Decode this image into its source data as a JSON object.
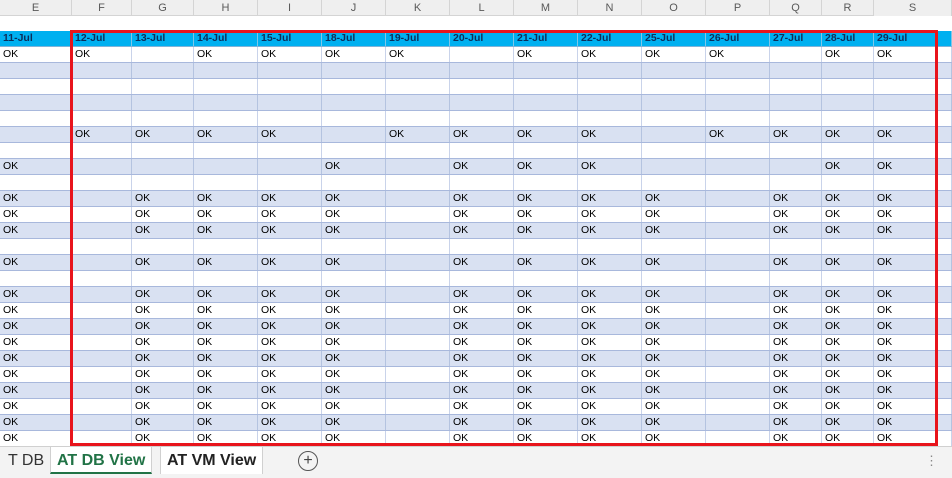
{
  "columns": [
    {
      "letter": "E",
      "width": 72
    },
    {
      "letter": "F",
      "width": 60
    },
    {
      "letter": "G",
      "width": 62
    },
    {
      "letter": "H",
      "width": 64
    },
    {
      "letter": "I",
      "width": 64
    },
    {
      "letter": "J",
      "width": 64
    },
    {
      "letter": "K",
      "width": 64
    },
    {
      "letter": "L",
      "width": 64
    },
    {
      "letter": "M",
      "width": 64
    },
    {
      "letter": "N",
      "width": 64
    },
    {
      "letter": "O",
      "width": 64
    },
    {
      "letter": "P",
      "width": 64
    },
    {
      "letter": "Q",
      "width": 52
    },
    {
      "letter": "R",
      "width": 52
    }
  ],
  "trailing_column": {
    "letter": "S"
  },
  "date_headers": [
    "11-Jul",
    "12-Jul",
    "13-Jul",
    "14-Jul",
    "15-Jul",
    "18-Jul",
    "19-Jul",
    "20-Jul",
    "21-Jul",
    "22-Jul",
    "25-Jul",
    "26-Jul",
    "27-Jul",
    "28-Jul",
    "29-Jul"
  ],
  "rows": [
    [
      "OK",
      "OK",
      "",
      "OK",
      "OK",
      "OK",
      "OK",
      "",
      "OK",
      "OK",
      "OK",
      "OK",
      "",
      "OK",
      "OK"
    ],
    [
      "",
      "",
      "",
      "",
      "",
      "",
      "",
      "",
      "",
      "",
      "",
      "",
      "",
      "",
      ""
    ],
    [
      "",
      "",
      "",
      "",
      "",
      "",
      "",
      "",
      "",
      "",
      "",
      "",
      "",
      "",
      ""
    ],
    [
      "",
      "",
      "",
      "",
      "",
      "",
      "",
      "",
      "",
      "",
      "",
      "",
      "",
      "",
      ""
    ],
    [
      "",
      "",
      "",
      "",
      "",
      "",
      "",
      "",
      "",
      "",
      "",
      "",
      "",
      "",
      ""
    ],
    [
      "",
      "OK",
      "OK",
      "OK",
      "OK",
      "",
      "OK",
      "OK",
      "OK",
      "OK",
      "",
      "OK",
      "OK",
      "OK",
      "OK"
    ],
    [
      "",
      "",
      "",
      "",
      "",
      "",
      "",
      "",
      "",
      "",
      "",
      "",
      "",
      "",
      ""
    ],
    [
      "OK",
      "",
      "",
      "",
      "",
      "OK",
      "",
      "OK",
      "OK",
      "OK",
      "",
      "",
      "",
      "OK",
      "OK"
    ],
    [
      "",
      "",
      "",
      "",
      "",
      "",
      "",
      "",
      "",
      "",
      "",
      "",
      "",
      "",
      ""
    ],
    [
      "OK",
      "",
      "OK",
      "OK",
      "OK",
      "OK",
      "",
      "OK",
      "OK",
      "OK",
      "OK",
      "",
      "OK",
      "OK",
      "OK"
    ],
    [
      "OK",
      "",
      "OK",
      "OK",
      "OK",
      "OK",
      "",
      "OK",
      "OK",
      "OK",
      "OK",
      "",
      "OK",
      "OK",
      "OK"
    ],
    [
      "OK",
      "",
      "OK",
      "OK",
      "OK",
      "OK",
      "",
      "OK",
      "OK",
      "OK",
      "OK",
      "",
      "OK",
      "OK",
      "OK"
    ],
    [
      "",
      "",
      "",
      "",
      "",
      "",
      "",
      "",
      "",
      "",
      "",
      "",
      "",
      "",
      ""
    ],
    [
      "OK",
      "",
      "OK",
      "OK",
      "OK",
      "OK",
      "",
      "OK",
      "OK",
      "OK",
      "OK",
      "",
      "OK",
      "OK",
      "OK"
    ],
    [
      "",
      "",
      "",
      "",
      "",
      "",
      "",
      "",
      "",
      "",
      "",
      "",
      "",
      "",
      ""
    ],
    [
      "OK",
      "",
      "OK",
      "OK",
      "OK",
      "OK",
      "",
      "OK",
      "OK",
      "OK",
      "OK",
      "",
      "OK",
      "OK",
      "OK"
    ],
    [
      "OK",
      "",
      "OK",
      "OK",
      "OK",
      "OK",
      "",
      "OK",
      "OK",
      "OK",
      "OK",
      "",
      "OK",
      "OK",
      "OK"
    ],
    [
      "OK",
      "",
      "OK",
      "OK",
      "OK",
      "OK",
      "",
      "OK",
      "OK",
      "OK",
      "OK",
      "",
      "OK",
      "OK",
      "OK"
    ],
    [
      "OK",
      "",
      "OK",
      "OK",
      "OK",
      "OK",
      "",
      "OK",
      "OK",
      "OK",
      "OK",
      "",
      "OK",
      "OK",
      "OK"
    ],
    [
      "OK",
      "",
      "OK",
      "OK",
      "OK",
      "OK",
      "",
      "OK",
      "OK",
      "OK",
      "OK",
      "",
      "OK",
      "OK",
      "OK"
    ],
    [
      "OK",
      "",
      "OK",
      "OK",
      "OK",
      "OK",
      "",
      "OK",
      "OK",
      "OK",
      "OK",
      "",
      "OK",
      "OK",
      "OK"
    ],
    [
      "OK",
      "",
      "OK",
      "OK",
      "OK",
      "OK",
      "",
      "OK",
      "OK",
      "OK",
      "OK",
      "",
      "OK",
      "OK",
      "OK"
    ],
    [
      "OK",
      "",
      "OK",
      "OK",
      "OK",
      "OK",
      "",
      "OK",
      "OK",
      "OK",
      "OK",
      "",
      "OK",
      "OK",
      "OK"
    ],
    [
      "OK",
      "",
      "OK",
      "OK",
      "OK",
      "OK",
      "",
      "OK",
      "OK",
      "OK",
      "OK",
      "",
      "OK",
      "OK",
      "OK"
    ],
    [
      "OK",
      "",
      "OK",
      "OK",
      "OK",
      "OK",
      "",
      "OK",
      "OK",
      "OK",
      "OK",
      "",
      "OK",
      "OK",
      "OK"
    ]
  ],
  "tabs": {
    "partial_tab": "T DB",
    "active_tab": "AT DB View",
    "second_tab": "AT VM View",
    "add_sheet_icon": "plus-circle-icon",
    "more_icon": "vertical-ellipsis-icon"
  },
  "colors": {
    "header_fill": "#00b0f0",
    "band_fill": "#d9e1f2",
    "highlight_border": "#e8141c",
    "active_tab_text": "#217346"
  }
}
